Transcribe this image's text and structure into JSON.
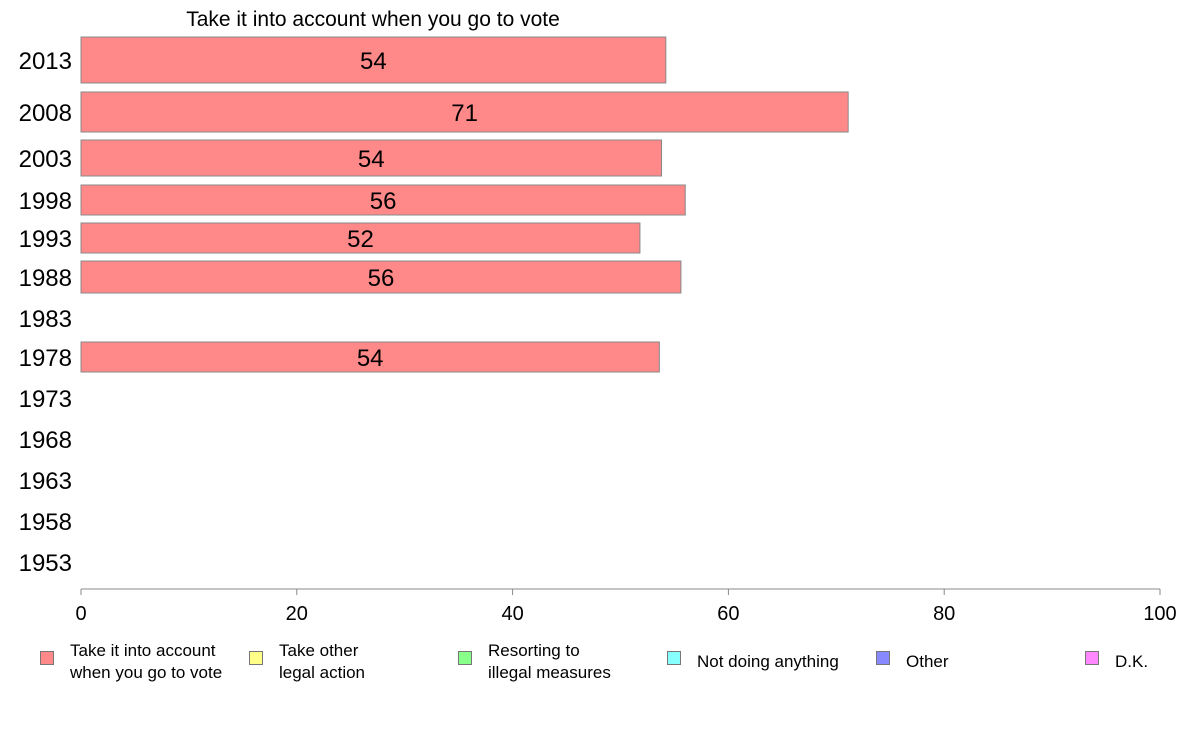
{
  "chart_data": {
    "type": "bar",
    "orientation": "horizontal",
    "title": "Take it into account when you go to vote",
    "categories": [
      "2013",
      "2008",
      "2003",
      "1998",
      "1993",
      "1988",
      "1983",
      "1978",
      "1973",
      "1968",
      "1963",
      "1958",
      "1953"
    ],
    "series": [
      {
        "name": "Take it into account\nwhen you go to vote",
        "color": "#ff8888",
        "values": [
          54.2,
          71.1,
          53.8,
          56.0,
          51.8,
          55.6,
          null,
          53.6,
          null,
          null,
          null,
          null,
          null
        ],
        "labels": [
          "54",
          "71",
          "54",
          "56",
          "52",
          "56",
          "",
          "54",
          "",
          "",
          "",
          "",
          ""
        ]
      }
    ],
    "xlim": [
      0,
      100
    ],
    "xticks": [
      "0",
      "20",
      "40",
      "60",
      "80",
      "100"
    ],
    "grid": false,
    "legend_position": "bottom"
  },
  "legend": [
    {
      "label": "Take it into account\nwhen you go to vote",
      "color": "#ff8888"
    },
    {
      "label": "Take other\nlegal action",
      "color": "#ffff88"
    },
    {
      "label": "Resorting to\nillegal measures",
      "color": "#88ff88"
    },
    {
      "label": "Not doing anything",
      "color": "#88ffff"
    },
    {
      "label": "Other",
      "color": "#8888ff"
    },
    {
      "label": "D.K.",
      "color": "#ff88ff"
    }
  ]
}
